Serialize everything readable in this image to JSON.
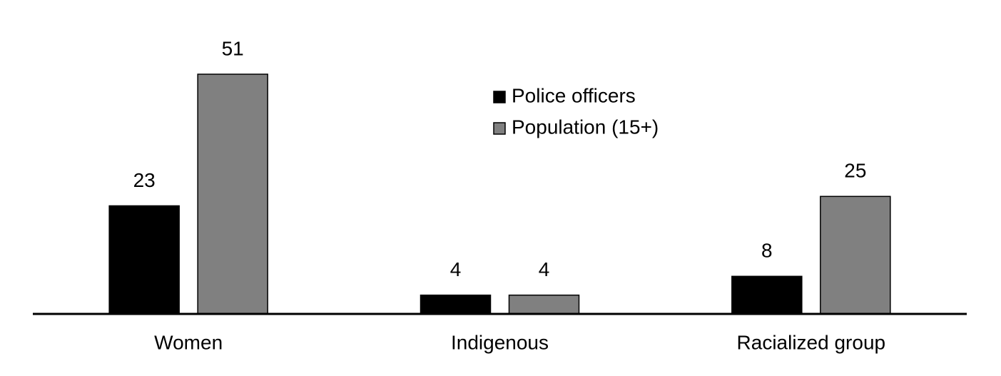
{
  "chart_data": {
    "type": "bar",
    "categories": [
      "Women",
      "Indigenous",
      "Racialized group"
    ],
    "series": [
      {
        "name": "Police officers",
        "color": "#000000",
        "values": [
          23,
          4,
          8
        ]
      },
      {
        "name": "Population (15+)",
        "color": "#808080",
        "values": [
          51,
          4,
          25
        ]
      }
    ],
    "legend": "top-center"
  }
}
